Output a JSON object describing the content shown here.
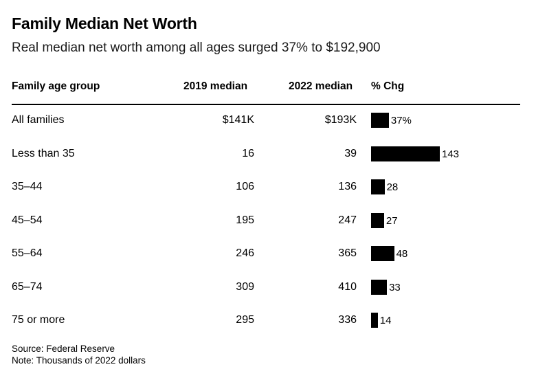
{
  "title": "Family Median Net Worth",
  "subtitle": "Real median net worth among all ages surged 37% to $192,900",
  "headers": {
    "group": "Family age group",
    "median_2019": "2019 median",
    "median_2022": "2022 median",
    "pct_chg": "% Chg"
  },
  "chart_data": {
    "type": "table",
    "title": "Family Median Net Worth",
    "columns": [
      "Family age group",
      "2019 median",
      "2022 median",
      "% Chg"
    ],
    "rows": [
      {
        "group": "All families",
        "median_2019": "$141K",
        "median_2022": "$193K",
        "pct_chg": 37,
        "pct_label": "37%"
      },
      {
        "group": "Less than 35",
        "median_2019": "16",
        "median_2022": "39",
        "pct_chg": 143,
        "pct_label": "143"
      },
      {
        "group": "35–44",
        "median_2019": "106",
        "median_2022": "136",
        "pct_chg": 28,
        "pct_label": "28"
      },
      {
        "group": "45–54",
        "median_2019": "195",
        "median_2022": "247",
        "pct_chg": 27,
        "pct_label": "27"
      },
      {
        "group": "55–64",
        "median_2019": "246",
        "median_2022": "365",
        "pct_chg": 48,
        "pct_label": "48"
      },
      {
        "group": "65–74",
        "median_2019": "309",
        "median_2022": "410",
        "pct_chg": 33,
        "pct_label": "33"
      },
      {
        "group": "75 or more",
        "median_2019": "295",
        "median_2022": "336",
        "pct_chg": 14,
        "pct_label": "14"
      }
    ]
  },
  "source": "Source: Federal Reserve",
  "note": "Note: Thousands of 2022 dollars",
  "colors": {
    "bar": "#000000",
    "text": "#000000",
    "background": "#ffffff"
  }
}
